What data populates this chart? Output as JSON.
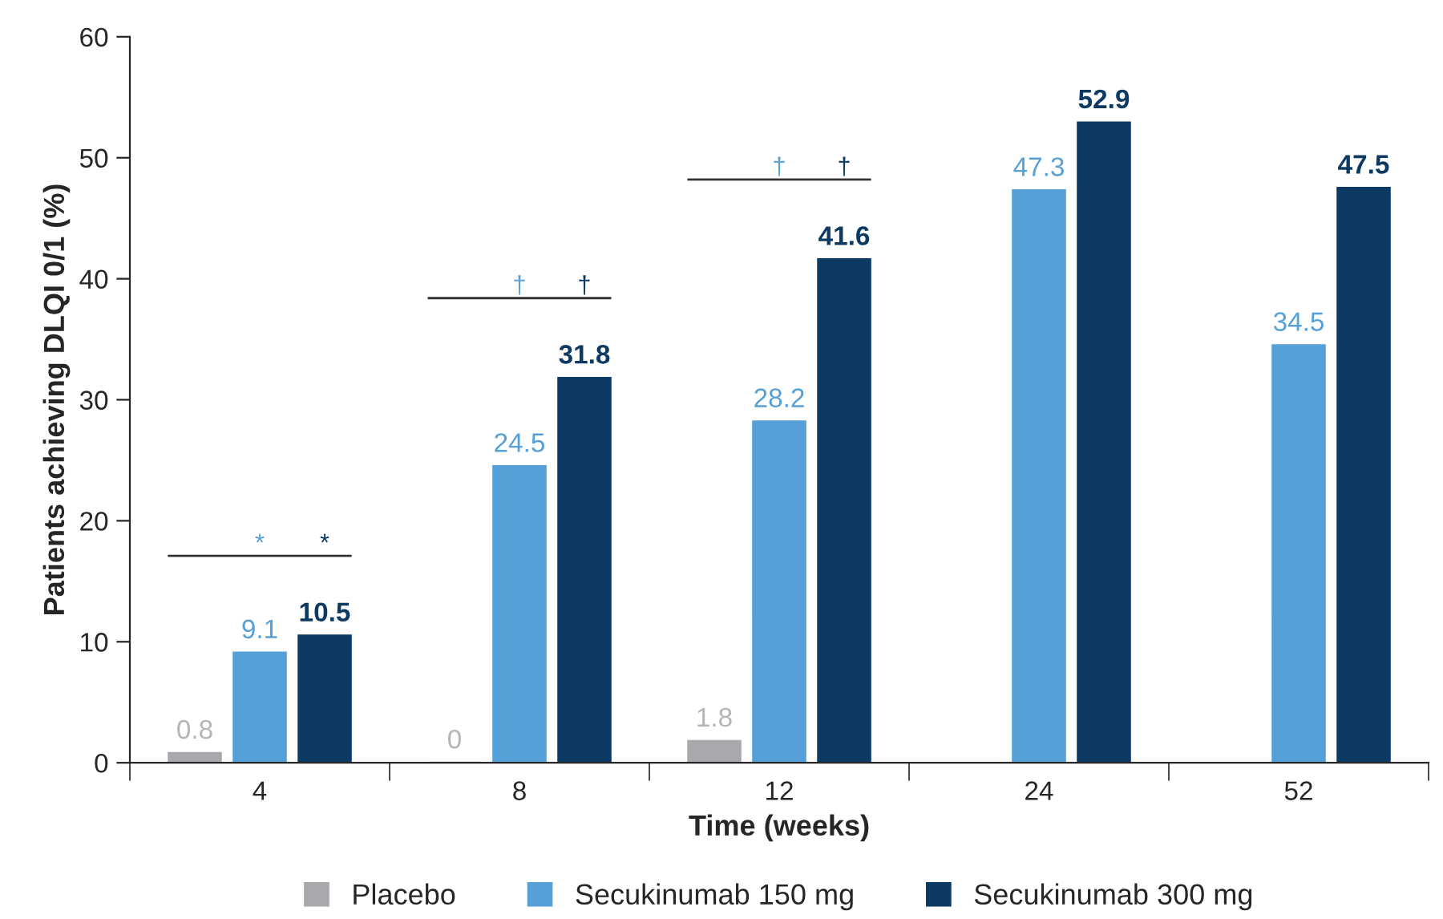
{
  "chart_data": {
    "type": "bar",
    "xlabel": "Time (weeks)",
    "ylabel": "Patients achieving DLQI 0/1 (%)",
    "categories": [
      "4",
      "8",
      "12",
      "24",
      "52"
    ],
    "series": [
      {
        "name": "Placebo",
        "color": "#a7a9ac",
        "values": [
          0.8,
          0,
          1.8,
          null,
          null
        ]
      },
      {
        "name": "Secukinumab 150 mg",
        "color": "#55a0d8",
        "values": [
          9.1,
          24.5,
          28.2,
          47.3,
          34.5
        ]
      },
      {
        "name": "Secukinumab 300 mg",
        "color": "#0d3a63",
        "values": [
          10.5,
          31.8,
          41.6,
          52.9,
          47.5
        ]
      }
    ],
    "ylim": [
      0,
      60
    ],
    "yticks": [
      0,
      10,
      20,
      30,
      40,
      50,
      60
    ],
    "grid": false,
    "legend": "bottom",
    "data_labels": true,
    "annotations": [
      "*",
      "*",
      "†",
      "†",
      "†",
      "†"
    ]
  }
}
